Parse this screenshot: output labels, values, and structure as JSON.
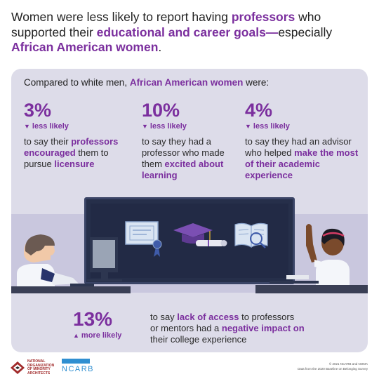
{
  "headline": {
    "p1": "Women were less likely to report having ",
    "h1": "professors",
    "p2": " who supported their ",
    "h2": "educational and career goals—",
    "p3": "especially ",
    "h3": "African American women",
    "p4": "."
  },
  "intro": {
    "p1": "Compared to white men, ",
    "h1": "African American women",
    "p2": " were:"
  },
  "stats": [
    {
      "value": "3%",
      "arrow": "▼",
      "direction": "less likely",
      "t1": "to say their ",
      "h1": "professors encouraged",
      "t2": " them to pursue ",
      "h2": "licensure",
      "t3": ""
    },
    {
      "value": "10%",
      "arrow": "▼",
      "direction": "less likely",
      "t1": "to say they had a professor who made them ",
      "h1": "excited about learning",
      "t2": "",
      "h2": "",
      "t3": ""
    },
    {
      "value": "4%",
      "arrow": "▼",
      "direction": "less likely",
      "t1": "to say they had an advisor who helped ",
      "h1": "make the most of their academic experience",
      "t2": "",
      "h2": "",
      "t3": ""
    }
  ],
  "bottom_stat": {
    "value": "13%",
    "arrow": "▲",
    "direction": "more likely",
    "t1": "to say ",
    "h1": "lack of access",
    "t2": " to professors or mentors had a ",
    "h2": "negative impact on",
    "t3": " their college experience"
  },
  "footer": {
    "noma_line1": "NATIONAL",
    "noma_line2": "ORGANIZATION",
    "noma_line3": "OF MINORITY",
    "noma_line4": "ARCHITECTS",
    "ncarb": "NCARB",
    "copyright_line1": "© 2021 NCARB and NOMA",
    "copyright_line2": "Data from the 2020 Baseline on Belonging Survey"
  },
  "colors": {
    "accent": "#7b2f9e",
    "panel": "#dddce9",
    "band": "#c9c7de",
    "screen": "#262f4a",
    "ncarb_blue": "#2f8fd1",
    "noma_red": "#a12b2b"
  },
  "illustration_icons": [
    "certificate-icon",
    "ribbon-icon",
    "graduation-cap-icon",
    "diploma-scroll-icon",
    "open-book-icon",
    "male-student-at-computer",
    "female-student-raising-hand"
  ]
}
